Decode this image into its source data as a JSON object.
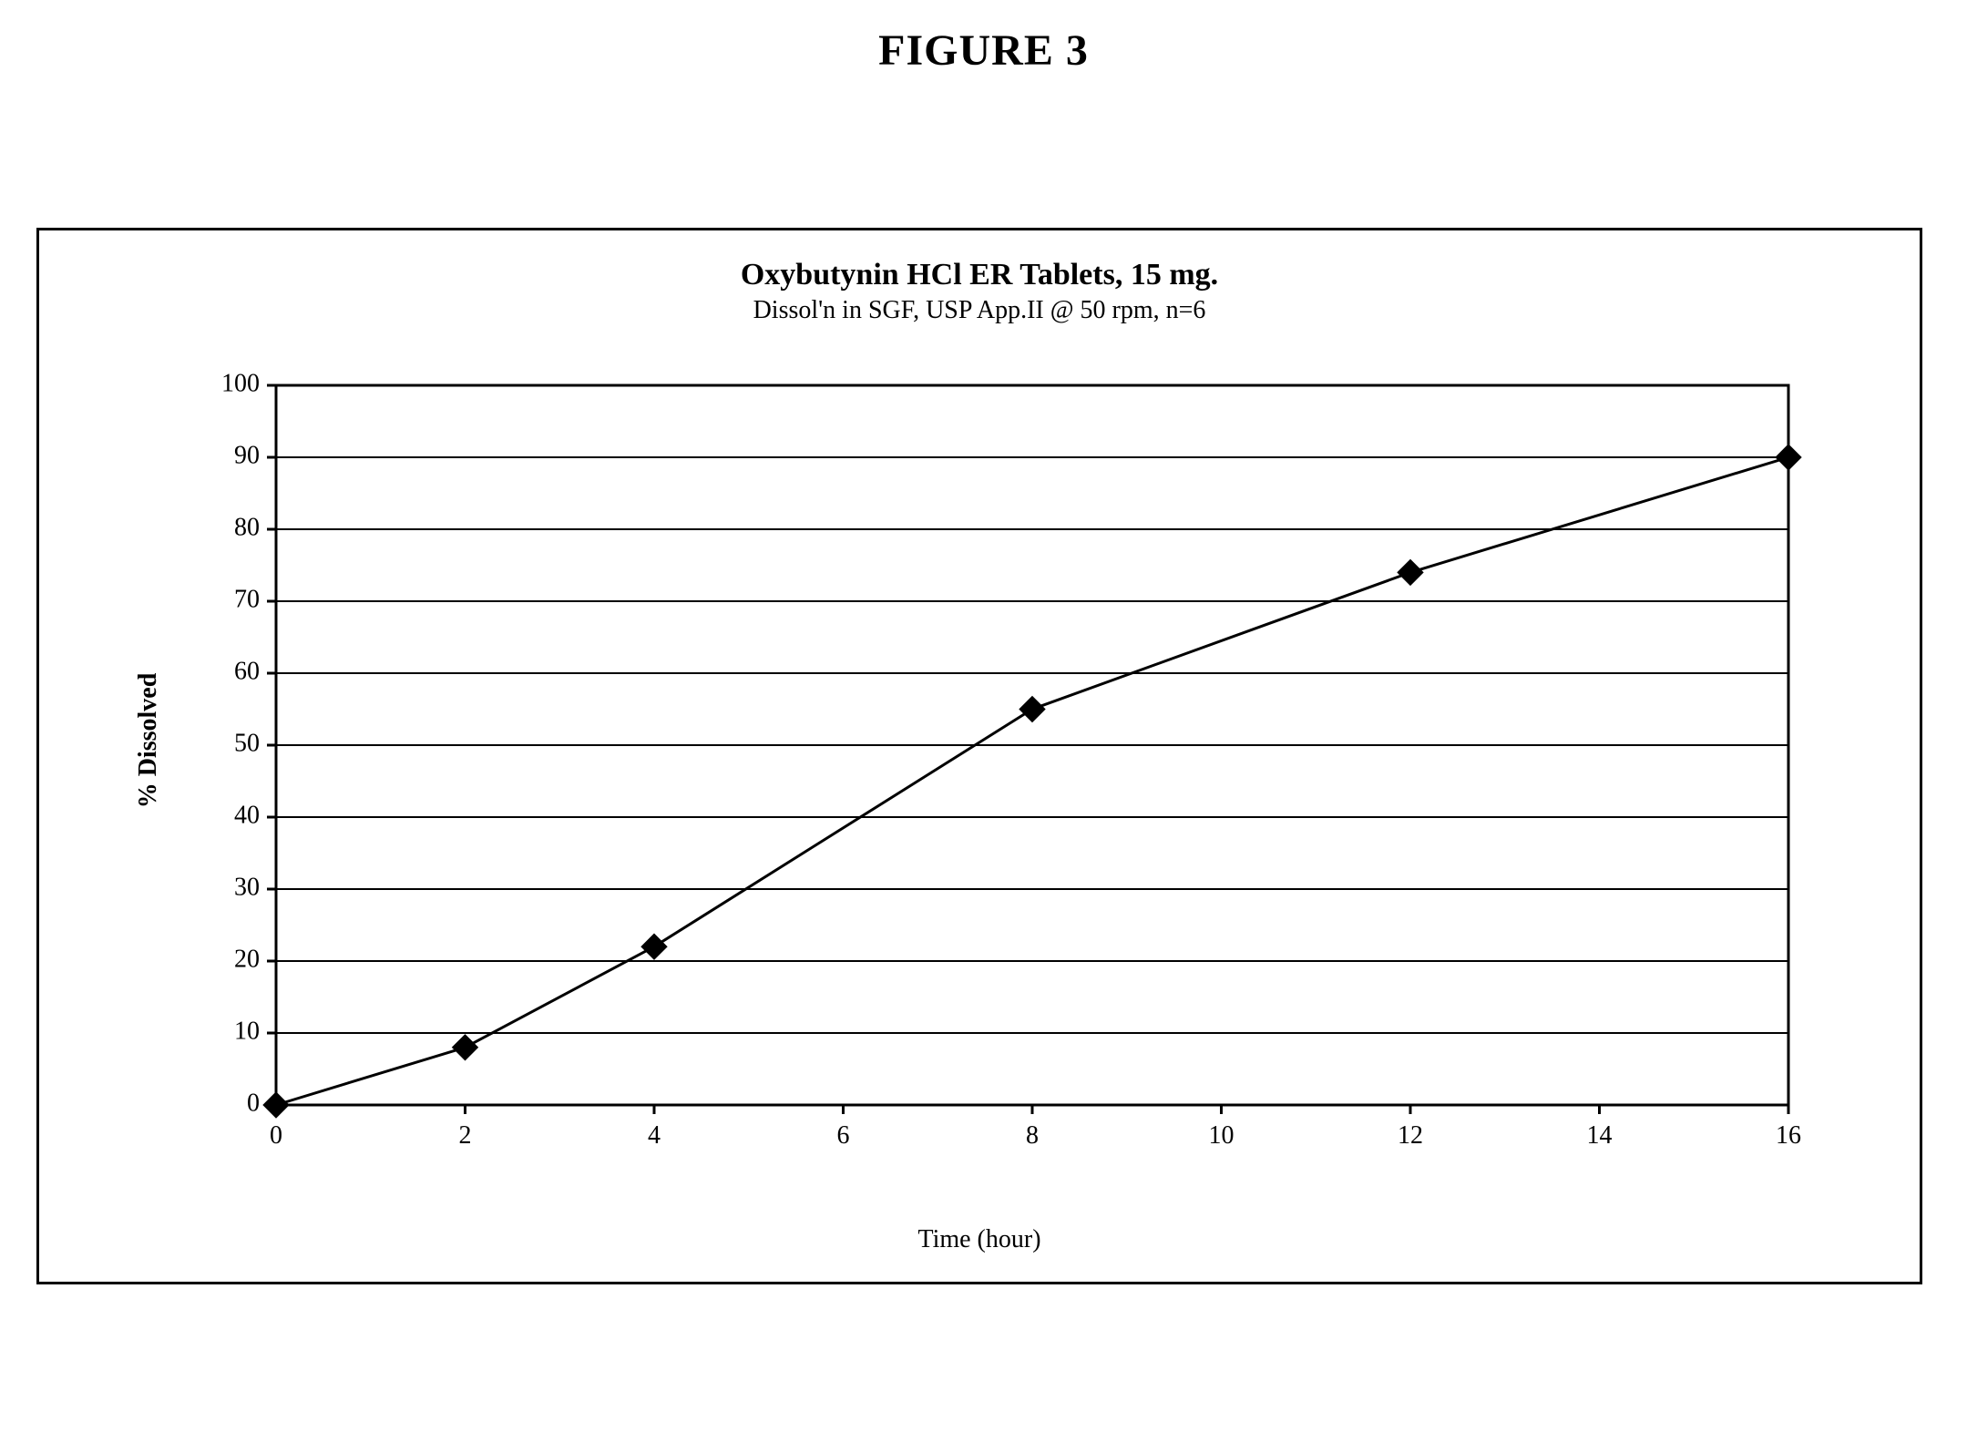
{
  "figure_heading": "FIGURE 3",
  "chart": {
    "type": "line",
    "title_line1": "Oxybutynin HCl ER Tablets, 15 mg.",
    "title_line2": "Dissol'n in SGF, USP App.II @ 50 rpm, n=6",
    "xlabel": "Time (hour)",
    "ylabel": "% Dissolved",
    "x_values": [
      0,
      2,
      4,
      8,
      12,
      16
    ],
    "y_values": [
      0,
      8,
      22,
      55,
      74,
      90
    ],
    "xlim": [
      0,
      16
    ],
    "ylim": [
      0,
      100
    ],
    "xtick_step": 2,
    "ytick_step": 10,
    "xtick_labels": [
      "0",
      "2",
      "4",
      "6",
      "8",
      "10",
      "12",
      "14",
      "16"
    ],
    "ytick_labels": [
      "0",
      "10",
      "20",
      "30",
      "40",
      "50",
      "60",
      "70",
      "80",
      "90",
      "100"
    ],
    "line_color": "#000000",
    "line_width": 3,
    "marker_style": "diamond",
    "marker_size": 14,
    "marker_color": "#000000",
    "grid_color": "#000000",
    "grid_line_width": 2,
    "axis_color": "#000000",
    "axis_line_width": 3,
    "background_color": "#ffffff",
    "outer_border_color": "#000000",
    "outer_border_width": 3,
    "tick_length": 10,
    "tick_fontsize": 28,
    "title_fontsize_line1": 34,
    "title_fontsize_line2": 28,
    "label_fontsize": 28
  }
}
